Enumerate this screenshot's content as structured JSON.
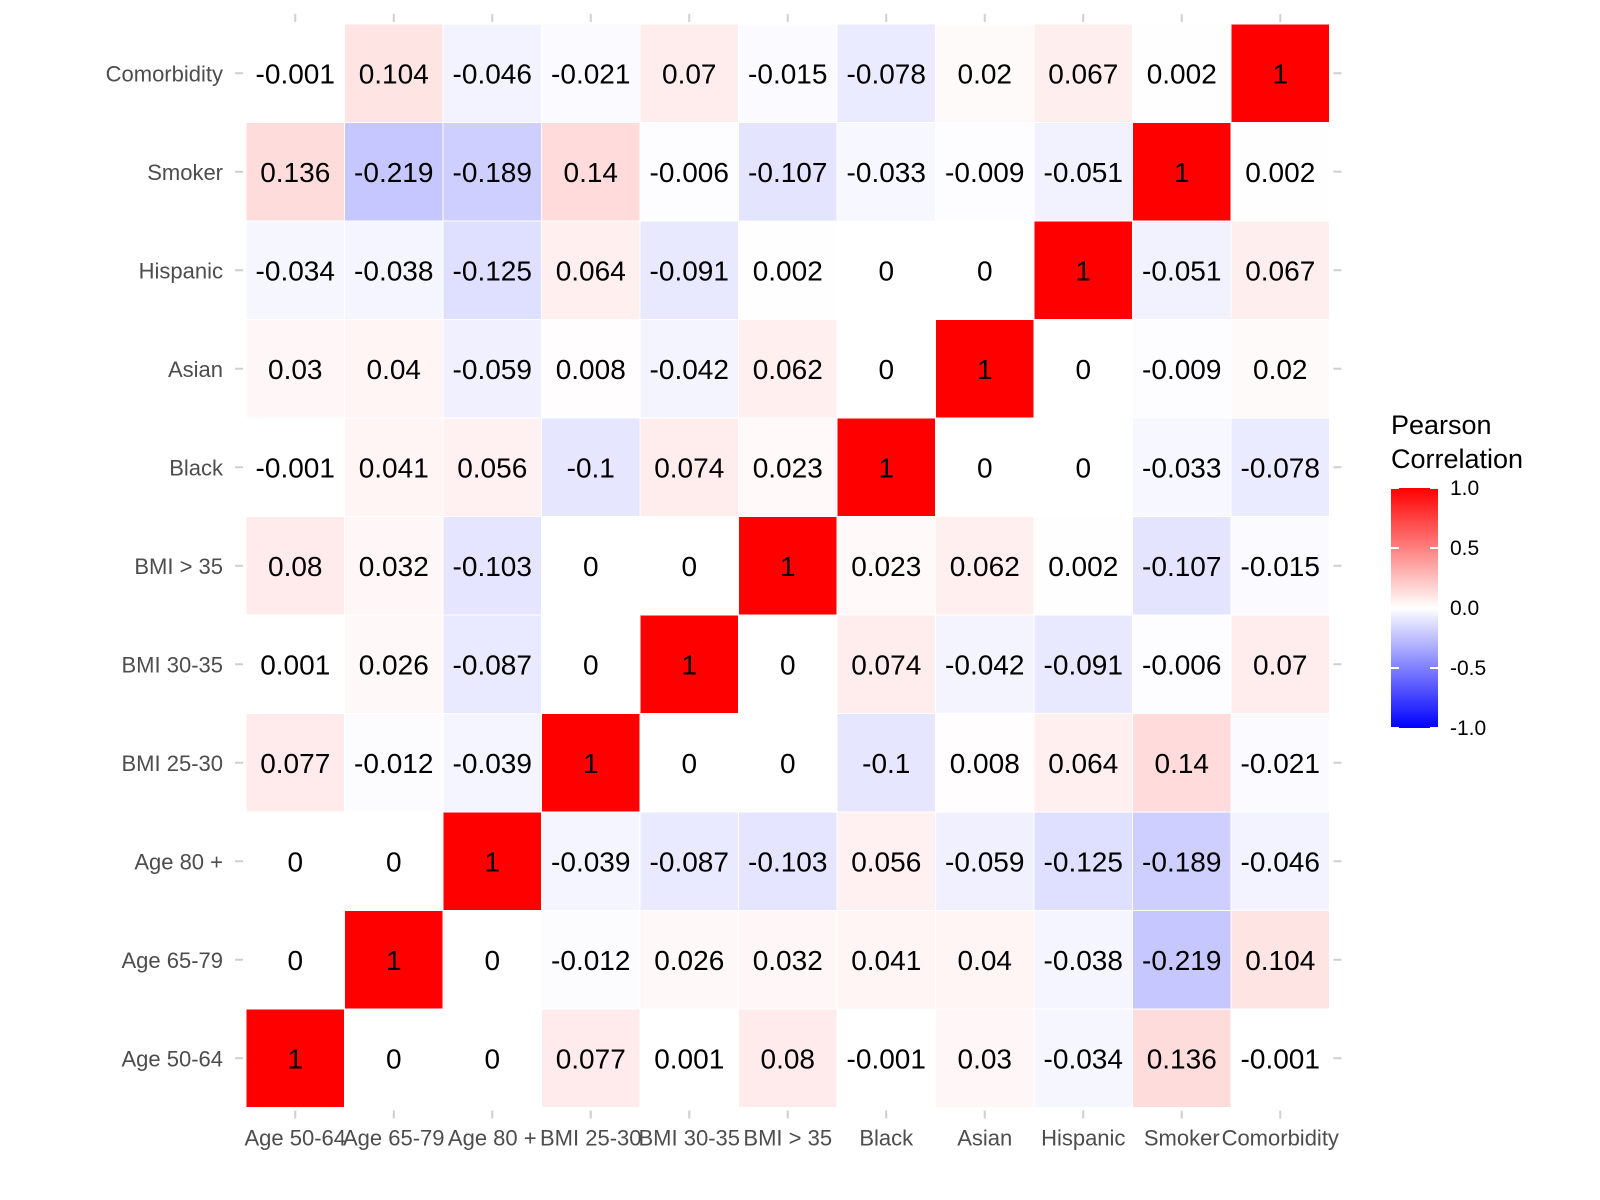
{
  "chart_data": {
    "type": "heatmap",
    "title": "",
    "xlabel": "",
    "ylabel": "",
    "variables": [
      "Age 50-64",
      "Age 65-79",
      "Age 80 +",
      "BMI 25-30",
      "BMI 30-35",
      "BMI > 35",
      "Black",
      "Asian",
      "Hispanic",
      "Smoker",
      "Comorbidity"
    ],
    "matrix": [
      [
        1,
        0,
        0,
        0.077,
        0.001,
        0.08,
        -0.001,
        0.03,
        -0.034,
        0.136,
        -0.001
      ],
      [
        0,
        1,
        0,
        -0.012,
        0.026,
        0.032,
        0.041,
        0.04,
        -0.038,
        -0.219,
        0.104
      ],
      [
        0,
        0,
        1,
        -0.039,
        -0.087,
        -0.103,
        0.056,
        -0.059,
        -0.125,
        -0.189,
        -0.046
      ],
      [
        0.077,
        -0.012,
        -0.039,
        1,
        0,
        0,
        -0.1,
        0.008,
        0.064,
        0.14,
        -0.021
      ],
      [
        0.001,
        0.026,
        -0.087,
        0,
        1,
        0,
        0.074,
        -0.042,
        -0.091,
        -0.006,
        0.07
      ],
      [
        0.08,
        0.032,
        -0.103,
        0,
        0,
        1,
        0.023,
        0.062,
        0.002,
        -0.107,
        -0.015
      ],
      [
        -0.001,
        0.041,
        0.056,
        -0.1,
        0.074,
        0.023,
        1,
        0,
        0,
        -0.033,
        -0.078
      ],
      [
        0.03,
        0.04,
        -0.059,
        0.008,
        -0.042,
        0.062,
        0,
        1,
        0,
        -0.009,
        0.02
      ],
      [
        -0.034,
        -0.038,
        -0.125,
        0.064,
        -0.091,
        0.002,
        0,
        0,
        1,
        -0.051,
        0.067
      ],
      [
        0.136,
        -0.219,
        -0.189,
        0.14,
        -0.006,
        -0.107,
        -0.033,
        -0.009,
        -0.051,
        1,
        0.002
      ],
      [
        -0.001,
        0.104,
        -0.046,
        -0.021,
        0.07,
        -0.015,
        -0.078,
        0.02,
        0.067,
        0.002,
        1
      ]
    ],
    "x_order": "left-to-right",
    "y_order": "bottom-to-top",
    "range": [
      -1,
      1
    ],
    "colors": {
      "low": "#0000FF",
      "mid": "#FFFFFF",
      "high": "#FF0000"
    },
    "legend": {
      "title_lines": [
        "Pearson",
        "Correlation"
      ],
      "ticks": [
        1.0,
        0.5,
        0.0,
        -0.5,
        -1.0
      ],
      "tick_labels": [
        "1.0",
        "0.5",
        "0.0",
        "-0.5",
        "-1.0"
      ],
      "position": "right"
    },
    "grid": false
  }
}
